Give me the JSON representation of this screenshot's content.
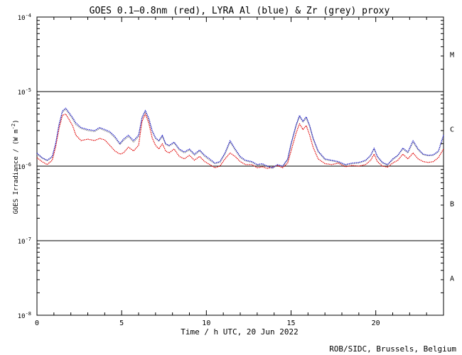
{
  "chart_data": {
    "type": "line",
    "title": "GOES 0.1—0.8nm (red), LYRA Al (blue) & Zr (grey) proxy",
    "xlabel": "Time / h UTC, 20 Jun 2022",
    "ylabel": "GOES Irradiance / (W m",
    "ylabel_sup": "-2",
    "ylabel_close": ")",
    "credit": "ROB/SIDC, Brussels, Belgium",
    "x_ticks": [
      "0",
      "5",
      "10",
      "15",
      "20"
    ],
    "y_ticks": [
      {
        "base": "10",
        "exp": "-4"
      },
      {
        "base": "10",
        "exp": "-5"
      },
      {
        "base": "10",
        "exp": "-6"
      },
      {
        "base": "10",
        "exp": "-7"
      },
      {
        "base": "10",
        "exp": "-8"
      }
    ],
    "flare_classes": [
      "M",
      "C",
      "B",
      "A"
    ],
    "xlim": [
      0,
      24
    ],
    "ylim": [
      1e-08,
      0.0001
    ],
    "log_y": true,
    "class_lines": [
      1e-05,
      1e-06,
      1e-07
    ],
    "series": [
      {
        "name": "GOES 0.1—0.8nm",
        "color": "#e00000",
        "points": [
          [
            0.0,
            1.3e-06
          ],
          [
            0.3,
            1.15e-06
          ],
          [
            0.6,
            1.05e-06
          ],
          [
            0.9,
            1.2e-06
          ],
          [
            1.1,
            1.8e-06
          ],
          [
            1.3,
            3.2e-06
          ],
          [
            1.5,
            4.8e-06
          ],
          [
            1.7,
            5e-06
          ],
          [
            1.9,
            4.2e-06
          ],
          [
            2.1,
            3.5e-06
          ],
          [
            2.3,
            2.6e-06
          ],
          [
            2.6,
            2.2e-06
          ],
          [
            3.0,
            2.3e-06
          ],
          [
            3.4,
            2.2e-06
          ],
          [
            3.7,
            2.35e-06
          ],
          [
            4.0,
            2.25e-06
          ],
          [
            4.3,
            1.9e-06
          ],
          [
            4.6,
            1.6e-06
          ],
          [
            4.9,
            1.45e-06
          ],
          [
            5.1,
            1.5e-06
          ],
          [
            5.4,
            1.8e-06
          ],
          [
            5.7,
            1.6e-06
          ],
          [
            6.0,
            1.9e-06
          ],
          [
            6.2,
            4e-06
          ],
          [
            6.4,
            5e-06
          ],
          [
            6.6,
            3.8e-06
          ],
          [
            6.8,
            2.4e-06
          ],
          [
            7.0,
            1.9e-06
          ],
          [
            7.2,
            1.7e-06
          ],
          [
            7.4,
            2e-06
          ],
          [
            7.6,
            1.6e-06
          ],
          [
            7.8,
            1.5e-06
          ],
          [
            8.1,
            1.7e-06
          ],
          [
            8.4,
            1.35e-06
          ],
          [
            8.7,
            1.25e-06
          ],
          [
            9.0,
            1.4e-06
          ],
          [
            9.3,
            1.2e-06
          ],
          [
            9.6,
            1.35e-06
          ],
          [
            9.9,
            1.15e-06
          ],
          [
            10.2,
            1.05e-06
          ],
          [
            10.5,
            9.5e-07
          ],
          [
            10.8,
            1e-06
          ],
          [
            11.1,
            1.25e-06
          ],
          [
            11.4,
            1.5e-06
          ],
          [
            11.7,
            1.35e-06
          ],
          [
            12.0,
            1.15e-06
          ],
          [
            12.3,
            1.05e-06
          ],
          [
            12.7,
            1.05e-06
          ],
          [
            13.0,
            9.5e-07
          ],
          [
            13.3,
            9.8e-07
          ],
          [
            13.6,
            9.3e-07
          ],
          [
            13.9,
            9.7e-07
          ],
          [
            14.2,
            1.02e-06
          ],
          [
            14.5,
            9.5e-07
          ],
          [
            14.8,
            1.1e-06
          ],
          [
            15.0,
            1.6e-06
          ],
          [
            15.3,
            2.8e-06
          ],
          [
            15.5,
            3.7e-06
          ],
          [
            15.7,
            3.1e-06
          ],
          [
            15.9,
            3.5e-06
          ],
          [
            16.1,
            2.6e-06
          ],
          [
            16.3,
            1.8e-06
          ],
          [
            16.6,
            1.25e-06
          ],
          [
            17.0,
            1.08e-06
          ],
          [
            17.4,
            1.05e-06
          ],
          [
            17.8,
            1.1e-06
          ],
          [
            18.2,
            9.8e-07
          ],
          [
            18.6,
            1.02e-06
          ],
          [
            19.0,
            1e-06
          ],
          [
            19.4,
            1.05e-06
          ],
          [
            19.7,
            1.2e-06
          ],
          [
            19.9,
            1.45e-06
          ],
          [
            20.1,
            1.15e-06
          ],
          [
            20.4,
            1e-06
          ],
          [
            20.7,
            9.7e-07
          ],
          [
            21.0,
            1.1e-06
          ],
          [
            21.3,
            1.2e-06
          ],
          [
            21.6,
            1.45e-06
          ],
          [
            21.9,
            1.25e-06
          ],
          [
            22.2,
            1.5e-06
          ],
          [
            22.5,
            1.25e-06
          ],
          [
            22.8,
            1.15e-06
          ],
          [
            23.1,
            1.12e-06
          ],
          [
            23.4,
            1.15e-06
          ],
          [
            23.7,
            1.3e-06
          ],
          [
            24.0,
            1.7e-06
          ]
        ]
      },
      {
        "name": "LYRA Al",
        "color": "#2020d0",
        "points": [
          [
            0.0,
            1.5e-06
          ],
          [
            0.3,
            1.3e-06
          ],
          [
            0.6,
            1.2e-06
          ],
          [
            0.9,
            1.35e-06
          ],
          [
            1.1,
            2e-06
          ],
          [
            1.3,
            3.6e-06
          ],
          [
            1.5,
            5.5e-06
          ],
          [
            1.7,
            6e-06
          ],
          [
            1.9,
            5.2e-06
          ],
          [
            2.1,
            4.5e-06
          ],
          [
            2.3,
            3.8e-06
          ],
          [
            2.6,
            3.3e-06
          ],
          [
            3.0,
            3.1e-06
          ],
          [
            3.4,
            3e-06
          ],
          [
            3.7,
            3.3e-06
          ],
          [
            4.0,
            3.1e-06
          ],
          [
            4.3,
            2.9e-06
          ],
          [
            4.6,
            2.5e-06
          ],
          [
            4.9,
            2e-06
          ],
          [
            5.1,
            2.3e-06
          ],
          [
            5.4,
            2.6e-06
          ],
          [
            5.7,
            2.2e-06
          ],
          [
            6.0,
            2.6e-06
          ],
          [
            6.2,
            4.5e-06
          ],
          [
            6.4,
            5.6e-06
          ],
          [
            6.6,
            4.4e-06
          ],
          [
            6.8,
            3e-06
          ],
          [
            7.0,
            2.4e-06
          ],
          [
            7.2,
            2.2e-06
          ],
          [
            7.4,
            2.6e-06
          ],
          [
            7.6,
            2e-06
          ],
          [
            7.8,
            1.9e-06
          ],
          [
            8.1,
            2.1e-06
          ],
          [
            8.4,
            1.7e-06
          ],
          [
            8.7,
            1.55e-06
          ],
          [
            9.0,
            1.7e-06
          ],
          [
            9.3,
            1.45e-06
          ],
          [
            9.6,
            1.65e-06
          ],
          [
            9.9,
            1.4e-06
          ],
          [
            10.2,
            1.25e-06
          ],
          [
            10.5,
            1.1e-06
          ],
          [
            10.8,
            1.15e-06
          ],
          [
            11.1,
            1.5e-06
          ],
          [
            11.4,
            2.2e-06
          ],
          [
            11.7,
            1.7e-06
          ],
          [
            12.0,
            1.35e-06
          ],
          [
            12.3,
            1.2e-06
          ],
          [
            12.7,
            1.15e-06
          ],
          [
            13.0,
            1.05e-06
          ],
          [
            13.3,
            1.08e-06
          ],
          [
            13.6,
            1e-06
          ],
          [
            13.9,
            9.5e-07
          ],
          [
            14.2,
            1.05e-06
          ],
          [
            14.5,
            1e-06
          ],
          [
            14.8,
            1.25e-06
          ],
          [
            15.0,
            2e-06
          ],
          [
            15.3,
            3.6e-06
          ],
          [
            15.5,
            4.8e-06
          ],
          [
            15.7,
            4e-06
          ],
          [
            15.9,
            4.6e-06
          ],
          [
            16.1,
            3.5e-06
          ],
          [
            16.3,
            2.4e-06
          ],
          [
            16.6,
            1.6e-06
          ],
          [
            17.0,
            1.25e-06
          ],
          [
            17.4,
            1.2e-06
          ],
          [
            17.8,
            1.15e-06
          ],
          [
            18.2,
            1.05e-06
          ],
          [
            18.6,
            1.1e-06
          ],
          [
            19.0,
            1.12e-06
          ],
          [
            19.4,
            1.2e-06
          ],
          [
            19.7,
            1.4e-06
          ],
          [
            19.9,
            1.75e-06
          ],
          [
            20.1,
            1.35e-06
          ],
          [
            20.4,
            1.12e-06
          ],
          [
            20.7,
            1.05e-06
          ],
          [
            21.0,
            1.25e-06
          ],
          [
            21.3,
            1.4e-06
          ],
          [
            21.6,
            1.75e-06
          ],
          [
            21.9,
            1.55e-06
          ],
          [
            22.2,
            2.2e-06
          ],
          [
            22.5,
            1.7e-06
          ],
          [
            22.8,
            1.45e-06
          ],
          [
            23.1,
            1.4e-06
          ],
          [
            23.4,
            1.42e-06
          ],
          [
            23.7,
            1.6e-06
          ],
          [
            24.0,
            2.6e-06
          ]
        ]
      },
      {
        "name": "Zr",
        "color": "#8a8a8a",
        "points": [
          [
            0.0,
            1.45e-06
          ],
          [
            0.3,
            1.28e-06
          ],
          [
            0.6,
            1.18e-06
          ],
          [
            0.9,
            1.32e-06
          ],
          [
            1.1,
            1.95e-06
          ],
          [
            1.3,
            3.5e-06
          ],
          [
            1.5,
            5.3e-06
          ],
          [
            1.7,
            5.8e-06
          ],
          [
            1.9,
            5e-06
          ],
          [
            2.1,
            4.3e-06
          ],
          [
            2.3,
            3.6e-06
          ],
          [
            2.6,
            3.2e-06
          ],
          [
            3.0,
            3e-06
          ],
          [
            3.4,
            2.9e-06
          ],
          [
            3.7,
            3.2e-06
          ],
          [
            4.0,
            3e-06
          ],
          [
            4.3,
            2.8e-06
          ],
          [
            4.6,
            2.4e-06
          ],
          [
            4.9,
            1.95e-06
          ],
          [
            5.1,
            2.2e-06
          ],
          [
            5.4,
            2.5e-06
          ],
          [
            5.7,
            2.1e-06
          ],
          [
            6.0,
            2.5e-06
          ],
          [
            6.2,
            4.4e-06
          ],
          [
            6.4,
            5.4e-06
          ],
          [
            6.6,
            4.2e-06
          ],
          [
            6.8,
            2.9e-06
          ],
          [
            7.0,
            2.35e-06
          ],
          [
            7.2,
            2.15e-06
          ],
          [
            7.4,
            2.5e-06
          ],
          [
            7.6,
            1.95e-06
          ],
          [
            7.8,
            1.85e-06
          ],
          [
            8.1,
            2.05e-06
          ],
          [
            8.4,
            1.65e-06
          ],
          [
            8.7,
            1.5e-06
          ],
          [
            9.0,
            1.65e-06
          ],
          [
            9.3,
            1.4e-06
          ],
          [
            9.6,
            1.6e-06
          ],
          [
            9.9,
            1.35e-06
          ],
          [
            10.2,
            1.2e-06
          ],
          [
            10.5,
            1.08e-06
          ],
          [
            10.8,
            1.12e-06
          ],
          [
            11.1,
            1.45e-06
          ],
          [
            11.4,
            2.1e-06
          ],
          [
            11.7,
            1.65e-06
          ],
          [
            12.0,
            1.3e-06
          ],
          [
            12.3,
            1.18e-06
          ],
          [
            12.7,
            1.12e-06
          ],
          [
            13.0,
            1.03e-06
          ],
          [
            13.3,
            1.05e-06
          ],
          [
            13.6,
            9.8e-07
          ],
          [
            13.9,
            9.3e-07
          ],
          [
            14.2,
            1.03e-06
          ],
          [
            14.5,
            9.8e-07
          ],
          [
            14.8,
            1.2e-06
          ],
          [
            15.0,
            1.95e-06
          ],
          [
            15.3,
            3.5e-06
          ],
          [
            15.5,
            4.6e-06
          ],
          [
            15.7,
            3.9e-06
          ],
          [
            15.9,
            4.4e-06
          ],
          [
            16.1,
            3.4e-06
          ],
          [
            16.3,
            2.3e-06
          ],
          [
            16.6,
            1.55e-06
          ],
          [
            17.0,
            1.22e-06
          ],
          [
            17.4,
            1.18e-06
          ],
          [
            17.8,
            1.12e-06
          ],
          [
            18.2,
            1.03e-06
          ],
          [
            18.6,
            1.08e-06
          ],
          [
            19.0,
            1.1e-06
          ],
          [
            19.4,
            1.18e-06
          ],
          [
            19.7,
            1.38e-06
          ],
          [
            19.9,
            1.7e-06
          ],
          [
            20.1,
            1.32e-06
          ],
          [
            20.4,
            1.1e-06
          ],
          [
            20.7,
            1.03e-06
          ],
          [
            21.0,
            1.22e-06
          ],
          [
            21.3,
            1.38e-06
          ],
          [
            21.6,
            1.7e-06
          ],
          [
            21.9,
            1.5e-06
          ],
          [
            22.2,
            2.1e-06
          ],
          [
            22.5,
            1.65e-06
          ],
          [
            22.8,
            1.42e-06
          ],
          [
            23.1,
            1.38e-06
          ],
          [
            23.4,
            1.4e-06
          ],
          [
            23.7,
            1.55e-06
          ],
          [
            24.0,
            2.5e-06
          ]
        ]
      }
    ]
  }
}
